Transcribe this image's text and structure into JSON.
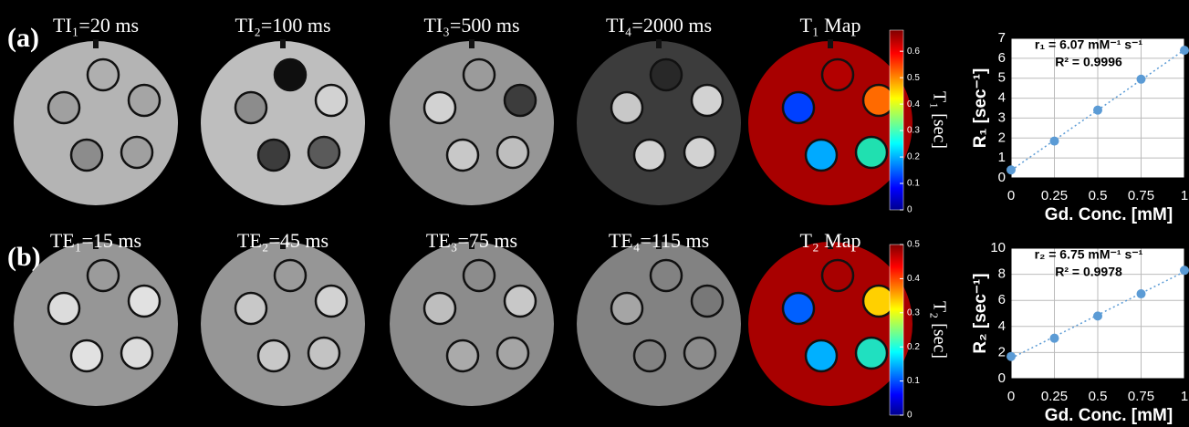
{
  "rows": [
    {
      "panel_label": "(a)",
      "images": [
        "TI₁=20 ms",
        "TI₂=100 ms",
        "TI₃=500 ms",
        "TI₄=2000 ms"
      ],
      "map_title": "T₁ Map",
      "colorbar": {
        "label": "T₁ [sec]",
        "lim": [
          0,
          0.68
        ],
        "ticks": [
          0,
          0.1,
          0.2,
          0.3,
          0.4,
          0.5,
          0.6
        ]
      }
    },
    {
      "panel_label": "(b)",
      "images": [
        "TE₁=15 ms",
        "TE₂=45 ms",
        "TE₃=75 ms",
        "TE₄=115 ms"
      ],
      "map_title": "T₂ Map",
      "colorbar": {
        "label": "T₂ [sec]",
        "lim": [
          0,
          0.5
        ],
        "ticks": [
          0,
          0.1,
          0.2,
          0.3,
          0.4,
          0.5
        ]
      }
    }
  ],
  "chart_data": [
    {
      "type": "scatter",
      "x": [
        0,
        0.25,
        0.5,
        0.75,
        1
      ],
      "values": [
        0.4,
        1.85,
        3.4,
        4.95,
        6.4
      ],
      "color": "#5b9bd5",
      "annotations": [
        "r₁ = 6.07 mM⁻¹ s⁻¹",
        "R² = 0.9996"
      ],
      "xlabel": "Gd. Conc. [mM]",
      "ylabel": "R₁ [sec⁻¹]",
      "xlim": [
        0,
        1
      ],
      "ylim": [
        0,
        7
      ],
      "xticks": [
        0,
        0.25,
        0.5,
        0.75,
        1
      ],
      "yticks": [
        0,
        1,
        2,
        3,
        4,
        5,
        6,
        7
      ],
      "grid": true,
      "fit_line": true
    },
    {
      "type": "scatter",
      "x": [
        0,
        0.25,
        0.5,
        0.75,
        1
      ],
      "values": [
        1.7,
        3.1,
        4.8,
        6.5,
        8.3
      ],
      "color": "#5b9bd5",
      "annotations": [
        "r₂ = 6.75 mM⁻¹ s⁻¹",
        "R² = 0.9978"
      ],
      "xlabel": "Gd. Conc. [mM]",
      "ylabel": "R₂ [sec⁻¹]",
      "xlim": [
        0,
        1
      ],
      "ylim": [
        0,
        10
      ],
      "xticks": [
        0,
        0.25,
        0.5,
        0.75,
        1
      ],
      "yticks": [
        0,
        2,
        4,
        6,
        8,
        10
      ],
      "grid": true,
      "fit_line": true
    }
  ]
}
